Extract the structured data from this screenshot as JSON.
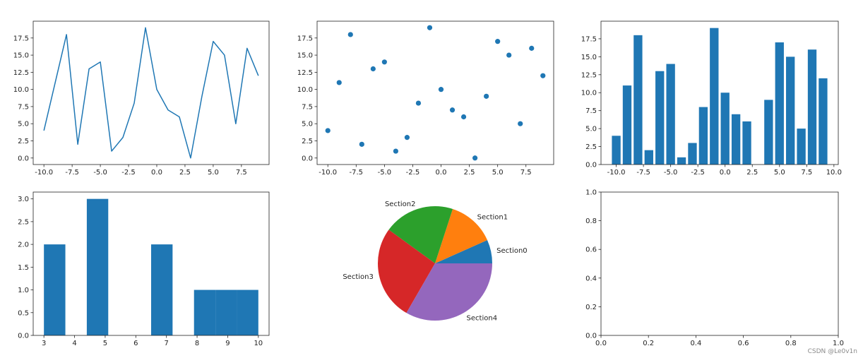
{
  "watermark": "CSDN @Le0v1n",
  "colors": {
    "primary": "#1f77b4",
    "pie": [
      "#1f77b4",
      "#ff7f0e",
      "#2ca02c",
      "#d62728",
      "#9467bd"
    ]
  },
  "chart_data": [
    {
      "type": "line",
      "x": [
        -10,
        -9,
        -8,
        -7,
        -6,
        -5,
        -4,
        -3,
        -2,
        -1,
        0,
        1,
        2,
        3,
        4,
        5,
        6,
        7,
        8,
        9
      ],
      "y": [
        4,
        11,
        18,
        2,
        13,
        14,
        1,
        3,
        8,
        19,
        10,
        7,
        6,
        0,
        9,
        17,
        15,
        5,
        16,
        12
      ],
      "xlim": [
        -10.95,
        9.95
      ],
      "ylim": [
        -0.95,
        19.95
      ],
      "xticks": [
        -10.0,
        -7.5,
        -5.0,
        -2.5,
        0.0,
        2.5,
        5.0,
        7.5
      ],
      "xtick_labels": [
        "-10.0",
        "-7.5",
        "-5.0",
        "-2.5",
        "0.0",
        "2.5",
        "5.0",
        "7.5"
      ],
      "yticks": [
        0.0,
        2.5,
        5.0,
        7.5,
        10.0,
        12.5,
        15.0,
        17.5
      ],
      "ytick_labels": [
        "0.0",
        "2.5",
        "5.0",
        "7.5",
        "10.0",
        "12.5",
        "15.0",
        "17.5"
      ],
      "color": "#1f77b4"
    },
    {
      "type": "scatter",
      "x": [
        -10,
        -9,
        -8,
        -7,
        -6,
        -5,
        -4,
        -3,
        -2,
        -1,
        0,
        1,
        2,
        3,
        4,
        5,
        6,
        7,
        8,
        9
      ],
      "y": [
        4,
        11,
        18,
        2,
        13,
        14,
        1,
        3,
        8,
        19,
        10,
        7,
        6,
        0,
        9,
        17,
        15,
        5,
        16,
        12
      ],
      "xlim": [
        -10.95,
        9.95
      ],
      "ylim": [
        -0.95,
        19.95
      ],
      "xticks": [
        -10.0,
        -7.5,
        -5.0,
        -2.5,
        0.0,
        2.5,
        5.0,
        7.5
      ],
      "xtick_labels": [
        "-10.0",
        "-7.5",
        "-5.0",
        "-2.5",
        "0.0",
        "2.5",
        "5.0",
        "7.5"
      ],
      "yticks": [
        0.0,
        2.5,
        5.0,
        7.5,
        10.0,
        12.5,
        15.0,
        17.5
      ],
      "ytick_labels": [
        "0.0",
        "2.5",
        "5.0",
        "7.5",
        "10.0",
        "12.5",
        "15.0",
        "17.5"
      ],
      "color": "#1f77b4"
    },
    {
      "type": "bar",
      "x": [
        -10,
        -9,
        -8,
        -7,
        -6,
        -5,
        -4,
        -3,
        -2,
        -1,
        0,
        1,
        2,
        3,
        4,
        5,
        6,
        7,
        8,
        9
      ],
      "values": [
        4,
        11,
        18,
        2,
        13,
        14,
        1,
        3,
        8,
        19,
        10,
        7,
        6,
        0,
        9,
        17,
        15,
        5,
        16,
        12
      ],
      "bar_width": 0.8,
      "xlim": [
        -11.4,
        10.4
      ],
      "ylim": [
        0,
        19.95
      ],
      "xticks": [
        -10.0,
        -7.5,
        -5.0,
        -2.5,
        0.0,
        2.5,
        5.0,
        7.5,
        10.0
      ],
      "xtick_labels": [
        "-10.0",
        "-7.5",
        "-5.0",
        "-2.5",
        "0.0",
        "2.5",
        "5.0",
        "7.5",
        "10.0"
      ],
      "yticks": [
        0.0,
        2.5,
        5.0,
        7.5,
        10.0,
        12.5,
        15.0,
        17.5
      ],
      "ytick_labels": [
        "0.0",
        "2.5",
        "5.0",
        "7.5",
        "10.0",
        "12.5",
        "15.0",
        "17.5"
      ],
      "color": "#1f77b4"
    },
    {
      "type": "bar",
      "subtype": "histogram",
      "bin_edges": [
        3.0,
        3.7,
        4.4,
        5.1,
        5.8,
        6.5,
        7.2,
        7.9,
        8.6,
        9.3,
        10.0
      ],
      "counts": [
        2,
        0,
        3,
        0,
        0,
        2,
        0,
        1,
        1,
        1
      ],
      "xlim": [
        2.65,
        10.35
      ],
      "ylim": [
        0,
        3.15
      ],
      "xticks": [
        3,
        4,
        5,
        6,
        7,
        8,
        9,
        10
      ],
      "xtick_labels": [
        "3",
        "4",
        "5",
        "6",
        "7",
        "8",
        "9",
        "10"
      ],
      "yticks": [
        0.0,
        0.5,
        1.0,
        1.5,
        2.0,
        2.5,
        3.0
      ],
      "ytick_labels": [
        "0.0",
        "0.5",
        "1.0",
        "1.5",
        "2.0",
        "2.5",
        "3.0"
      ],
      "color": "#1f77b4"
    },
    {
      "type": "pie",
      "labels": [
        "Section0",
        "Section1",
        "Section2",
        "Section3",
        "Section4"
      ],
      "values": [
        1,
        2,
        3,
        4,
        5
      ],
      "colors": [
        "#1f77b4",
        "#ff7f0e",
        "#2ca02c",
        "#d62728",
        "#9467bd"
      ]
    },
    {
      "type": "scatter",
      "empty": true,
      "xlim": [
        0.0,
        1.0
      ],
      "ylim": [
        0.0,
        1.0
      ],
      "xticks": [
        0.0,
        0.2,
        0.4,
        0.6,
        0.8,
        1.0
      ],
      "xtick_labels": [
        "0.0",
        "0.2",
        "0.4",
        "0.6",
        "0.8",
        "1.0"
      ],
      "yticks": [
        0.0,
        0.2,
        0.4,
        0.6,
        0.8,
        1.0
      ],
      "ytick_labels": [
        "0.0",
        "0.2",
        "0.4",
        "0.6",
        "0.8",
        "1.0"
      ]
    }
  ]
}
